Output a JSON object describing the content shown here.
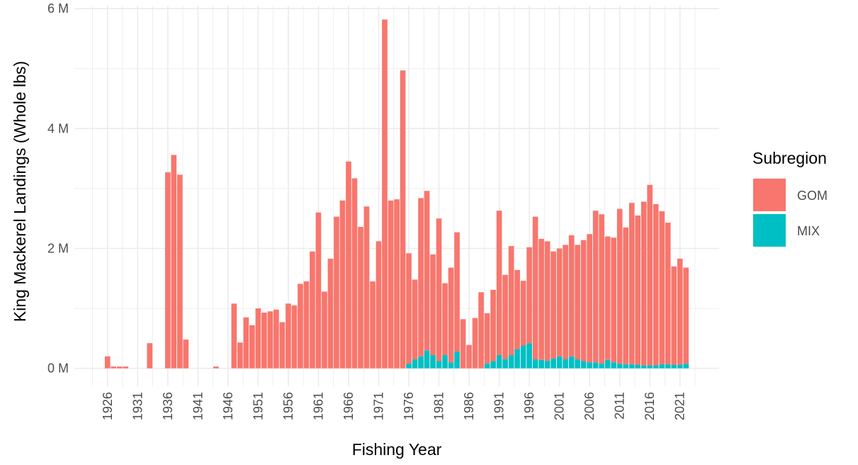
{
  "chart_data": {
    "type": "stacked_bar",
    "x_label": "Fishing Year",
    "y_label": "King Mackerel Landings (Whole lbs)",
    "legend_title": "Subregion",
    "legend_position": "right",
    "grid": true,
    "x": [
      1926,
      1927,
      1928,
      1929,
      1933,
      1936,
      1937,
      1938,
      1939,
      1944,
      1947,
      1948,
      1949,
      1950,
      1951,
      1952,
      1953,
      1954,
      1955,
      1956,
      1957,
      1958,
      1959,
      1960,
      1961,
      1962,
      1963,
      1964,
      1965,
      1966,
      1967,
      1968,
      1969,
      1970,
      1971,
      1972,
      1973,
      1974,
      1975,
      1976,
      1977,
      1978,
      1979,
      1980,
      1981,
      1982,
      1983,
      1984,
      1985,
      1986,
      1987,
      1988,
      1989,
      1990,
      1991,
      1992,
      1993,
      1994,
      1995,
      1996,
      1997,
      1998,
      1999,
      2000,
      2001,
      2002,
      2003,
      2004,
      2005,
      2006,
      2007,
      2008,
      2009,
      2010,
      2011,
      2012,
      2013,
      2014,
      2015,
      2016,
      2017,
      2018,
      2019,
      2020,
      2021,
      2022
    ],
    "series": [
      {
        "name": "GOM",
        "color": "#f8766d",
        "values": [
          0.2,
          0.03,
          0.03,
          0.03,
          0.42,
          3.27,
          3.56,
          3.23,
          0.48,
          0.03,
          1.08,
          0.43,
          0.85,
          0.72,
          1.0,
          0.93,
          0.95,
          0.98,
          0.77,
          1.08,
          1.05,
          1.41,
          1.45,
          1.95,
          2.6,
          1.28,
          1.83,
          2.53,
          2.8,
          3.45,
          3.17,
          2.36,
          2.7,
          1.45,
          2.12,
          5.82,
          2.8,
          2.82,
          4.97,
          1.84,
          1.33,
          2.64,
          2.66,
          1.68,
          2.38,
          1.2,
          1.58,
          1.99,
          0.82,
          0.39,
          0.84,
          1.27,
          0.84,
          1.19,
          2.41,
          1.41,
          1.82,
          1.32,
          1.08,
          1.6,
          2.38,
          2.02,
          1.99,
          1.79,
          1.8,
          1.91,
          2.02,
          1.91,
          2.02,
          2.14,
          2.53,
          2.49,
          2.06,
          2.08,
          2.58,
          2.28,
          2.69,
          2.49,
          2.73,
          3.01,
          2.69,
          2.55,
          2.36,
          1.64,
          1.77,
          1.6
        ]
      },
      {
        "name": "MIX",
        "color": "#00bfc4",
        "values": [
          null,
          null,
          null,
          null,
          null,
          null,
          null,
          null,
          null,
          null,
          null,
          null,
          null,
          null,
          null,
          null,
          null,
          null,
          null,
          null,
          null,
          null,
          null,
          null,
          null,
          null,
          null,
          null,
          null,
          null,
          null,
          null,
          null,
          null,
          null,
          null,
          null,
          null,
          null,
          0.08,
          0.15,
          0.2,
          0.3,
          0.22,
          0.12,
          0.22,
          0.1,
          0.28,
          null,
          null,
          null,
          null,
          0.08,
          0.12,
          0.22,
          0.15,
          0.22,
          0.32,
          0.38,
          0.42,
          0.15,
          0.14,
          0.13,
          0.16,
          0.2,
          0.15,
          0.2,
          0.15,
          0.12,
          0.1,
          0.1,
          0.08,
          0.14,
          0.1,
          0.08,
          0.07,
          0.07,
          0.06,
          0.05,
          0.05,
          0.05,
          0.07,
          0.07,
          0.06,
          0.06,
          0.08
        ]
      }
    ],
    "xlim": [
      1920.5,
      2027.5
    ],
    "xticks": [
      1926,
      1931,
      1936,
      1941,
      1946,
      1951,
      1956,
      1961,
      1966,
      1971,
      1976,
      1981,
      1986,
      1991,
      1996,
      2001,
      2006,
      2011,
      2016,
      2021
    ],
    "ylim": [
      -0.3,
      6.05
    ],
    "yticks": [
      {
        "value": 0,
        "label": "0 M"
      },
      {
        "value": 2,
        "label": "2 M"
      },
      {
        "value": 4,
        "label": "4 M"
      },
      {
        "value": 6,
        "label": "6 M"
      }
    ]
  }
}
